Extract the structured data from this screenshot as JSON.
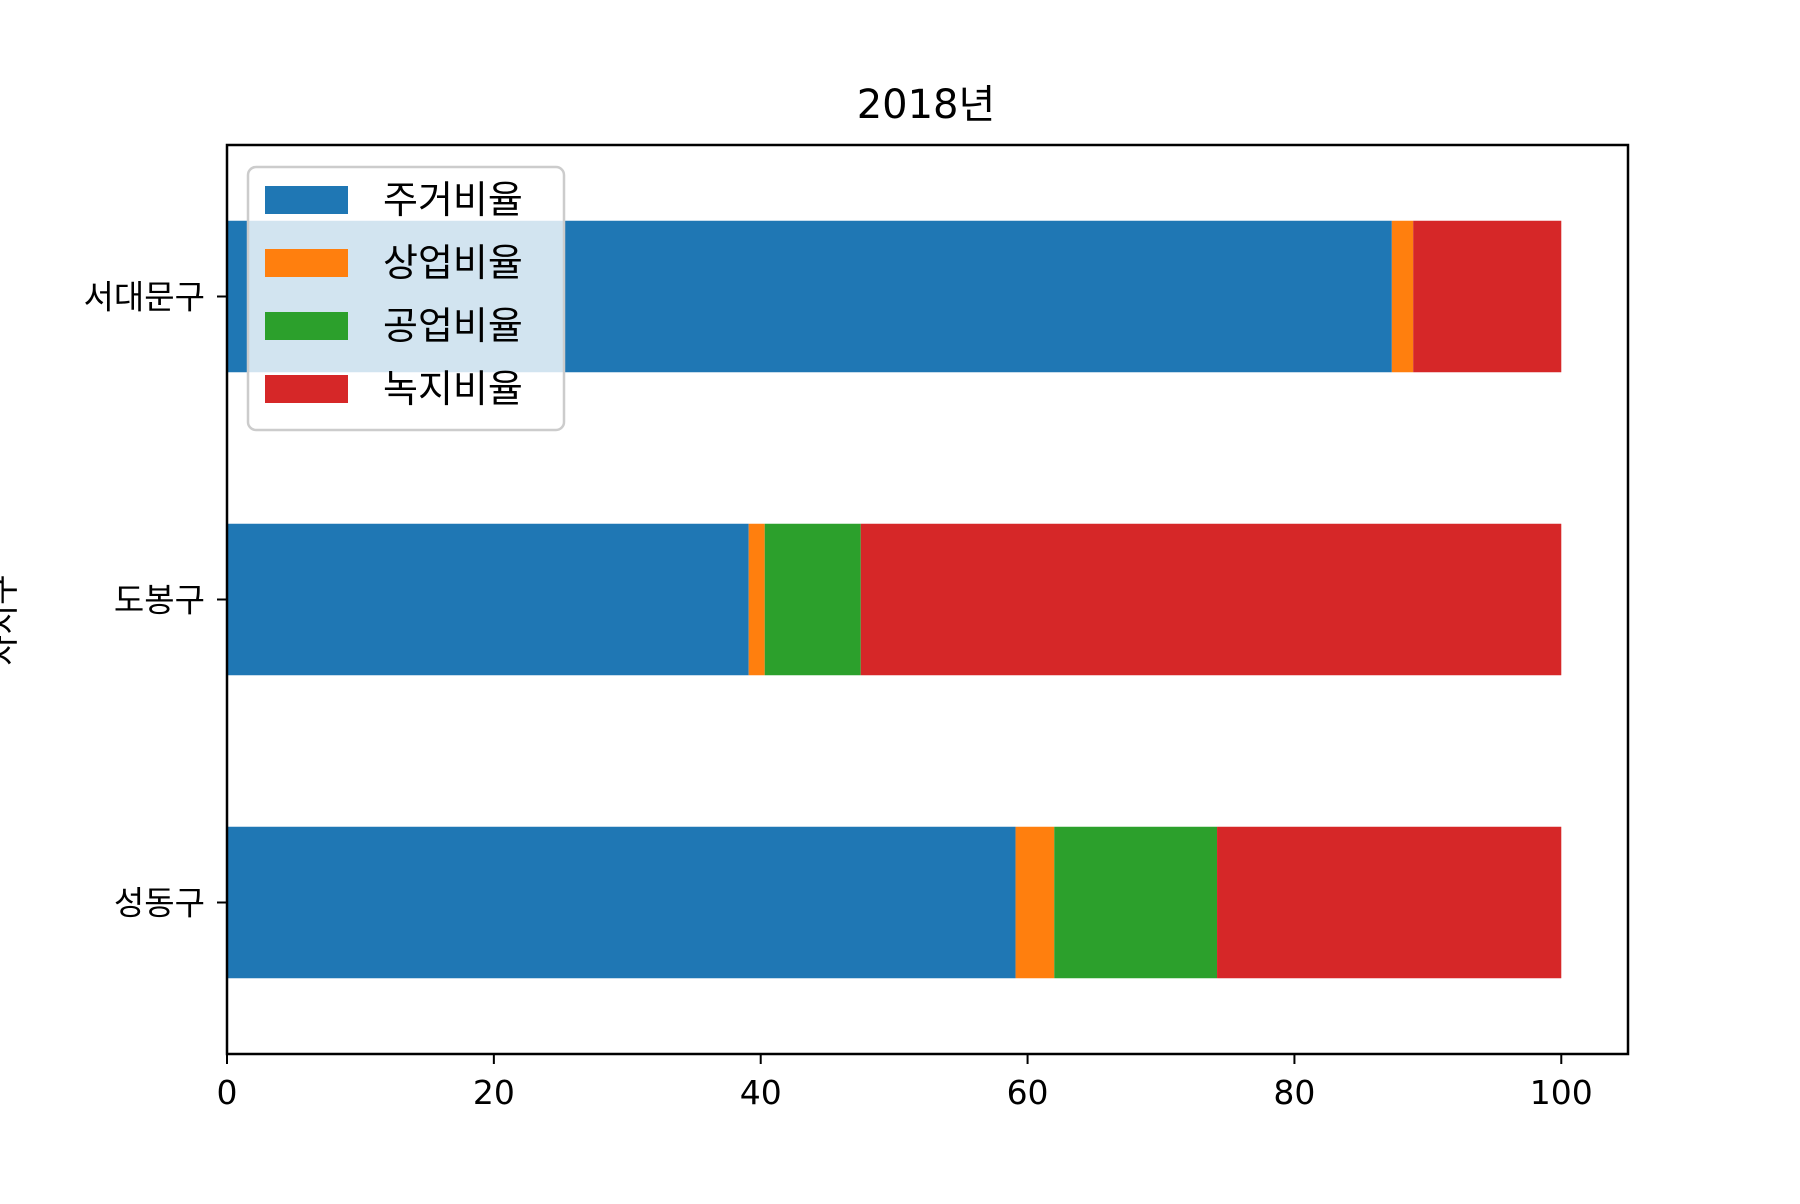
{
  "chart_data": {
    "type": "bar",
    "orientation": "horizontal",
    "stacked": true,
    "title": "2018년",
    "xlabel": "",
    "ylabel": "자치구",
    "xlim": [
      0,
      105
    ],
    "xticks": [
      "0",
      "20",
      "40",
      "60",
      "80",
      "100"
    ],
    "xtick_values": [
      0,
      20,
      40,
      60,
      80,
      100
    ],
    "categories": [
      "성동구",
      "도봉구",
      "서대문구"
    ],
    "series": [
      {
        "name": "주거비율",
        "color": "#1f77b4",
        "values": [
          59.1,
          39.1,
          87.3
        ]
      },
      {
        "name": "상업비율",
        "color": "#ff7f0e",
        "values": [
          2.9,
          1.2,
          1.6
        ]
      },
      {
        "name": "공업비율",
        "color": "#2ca02c",
        "values": [
          12.2,
          7.2,
          0.0
        ]
      },
      {
        "name": "녹지비율",
        "color": "#d62728",
        "values": [
          25.8,
          52.5,
          11.1
        ]
      }
    ],
    "legend_position": "top-left",
    "grid": false
  }
}
